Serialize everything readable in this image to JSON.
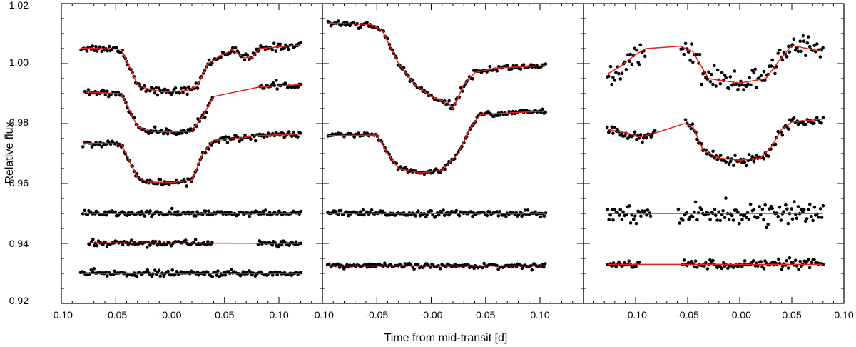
{
  "figure": {
    "xlabel": "Time from mid-transit [d]",
    "ylabel": "Relative flux",
    "y_tick_labels": [
      "0.92",
      "0.94",
      "0.96",
      "0.98",
      "1.00",
      "1.02"
    ],
    "colors": {
      "points": "#000000",
      "model": "#e8201c",
      "axes": "#000000"
    }
  },
  "chart_data": [
    {
      "type": "scatter",
      "panel": "left",
      "ylim": [
        0.92,
        1.02
      ],
      "xlim": [
        -0.1,
        0.14
      ],
      "x_ticks": [
        -0.1,
        -0.05,
        0.0,
        0.05,
        0.1
      ],
      "x_tick_labels": [
        "-0.10",
        "-0.05",
        "-0.00",
        "0.05",
        "0.10"
      ],
      "series": [
        {
          "x0": -0.082,
          "x1": 0.12,
          "noise": 0.0006,
          "gaps": [],
          "curve": [
            [
              -0.082,
              1.0052
            ],
            [
              -0.045,
              1.0048
            ],
            [
              -0.03,
              0.993
            ],
            [
              -0.02,
              0.9915
            ],
            [
              -0.005,
              0.9905
            ],
            [
              0.015,
              0.991
            ],
            [
              0.025,
              0.9925
            ],
            [
              0.035,
              1.0
            ],
            [
              0.048,
              1.003
            ],
            [
              0.058,
              1.0045
            ],
            [
              0.068,
              1.002
            ],
            [
              0.075,
              1.002
            ],
            [
              0.082,
              1.005
            ],
            [
              0.12,
              1.0062
            ]
          ]
        },
        {
          "x0": -0.078,
          "x1": 0.12,
          "noise": 0.0005,
          "gaps": [
            [
              0.04,
              0.082
            ]
          ],
          "curve": [
            [
              -0.078,
              0.9905
            ],
            [
              -0.045,
              0.99
            ],
            [
              -0.03,
              0.979
            ],
            [
              -0.02,
              0.9775
            ],
            [
              0.0,
              0.9772
            ],
            [
              0.02,
              0.9775
            ],
            [
              0.03,
              0.9825
            ],
            [
              0.04,
              0.989
            ],
            [
              0.082,
              0.9922
            ],
            [
              0.12,
              0.993
            ]
          ]
        },
        {
          "x0": -0.08,
          "x1": 0.12,
          "noise": 0.0005,
          "gaps": [],
          "curve": [
            [
              -0.08,
              0.9735
            ],
            [
              -0.045,
              0.9732
            ],
            [
              -0.03,
              0.962
            ],
            [
              -0.02,
              0.9605
            ],
            [
              0.0,
              0.9603
            ],
            [
              0.02,
              0.961
            ],
            [
              0.03,
              0.97
            ],
            [
              0.04,
              0.9745
            ],
            [
              0.06,
              0.975
            ],
            [
              0.08,
              0.976
            ],
            [
              0.12,
              0.9765
            ]
          ]
        },
        {
          "x0": -0.08,
          "x1": 0.12,
          "noise": 0.0005,
          "gaps": [],
          "curve": [
            [
              -0.08,
              0.95
            ],
            [
              0.12,
              0.95
            ]
          ]
        },
        {
          "x0": -0.075,
          "x1": 0.12,
          "noise": 0.0005,
          "gaps": [
            [
              0.04,
              0.08
            ]
          ],
          "curve": [
            [
              -0.075,
              0.9402
            ],
            [
              0.12,
              0.94
            ]
          ]
        },
        {
          "x0": -0.082,
          "x1": 0.12,
          "noise": 0.0005,
          "gaps": [],
          "curve": [
            [
              -0.082,
              0.93
            ],
            [
              0.12,
              0.93
            ]
          ]
        }
      ]
    },
    {
      "type": "scatter",
      "panel": "middle",
      "ylim": [
        0.92,
        1.02
      ],
      "xlim": [
        -0.1,
        0.14
      ],
      "x_ticks": [
        -0.1,
        -0.05,
        0.0,
        0.05,
        0.1
      ],
      "x_tick_labels": [
        "-0.10",
        "-0.05",
        "-0.00",
        "0.05",
        "0.10"
      ],
      "series": [
        {
          "x0": -0.095,
          "x1": 0.105,
          "noise": 0.0005,
          "gaps": [],
          "curve": [
            [
              -0.095,
              1.0135
            ],
            [
              -0.055,
              1.013
            ],
            [
              -0.045,
              1.011
            ],
            [
              -0.03,
              1.0
            ],
            [
              -0.015,
              0.993
            ],
            [
              0.0,
              0.989
            ],
            [
              0.015,
              0.987
            ],
            [
              0.02,
              0.985
            ],
            [
              0.03,
              0.993
            ],
            [
              0.04,
              0.997
            ],
            [
              0.06,
              0.9985
            ],
            [
              0.105,
              0.9993
            ]
          ]
        },
        {
          "x0": -0.095,
          "x1": 0.105,
          "noise": 0.0004,
          "gaps": [],
          "curve": [
            [
              -0.095,
              0.976
            ],
            [
              -0.05,
              0.9762
            ],
            [
              -0.04,
              0.97
            ],
            [
              -0.03,
              0.965
            ],
            [
              -0.01,
              0.9635
            ],
            [
              0.01,
              0.9645
            ],
            [
              0.025,
              0.97
            ],
            [
              0.035,
              0.978
            ],
            [
              0.045,
              0.983
            ],
            [
              0.105,
              0.9842
            ]
          ]
        },
        {
          "x0": -0.095,
          "x1": 0.105,
          "noise": 0.0005,
          "gaps": [],
          "curve": [
            [
              -0.095,
              0.95
            ],
            [
              0.105,
              0.95
            ]
          ]
        },
        {
          "x0": -0.095,
          "x1": 0.105,
          "noise": 0.0004,
          "gaps": [],
          "curve": [
            [
              -0.095,
              0.9325
            ],
            [
              0.105,
              0.9325
            ]
          ]
        }
      ]
    },
    {
      "type": "scatter",
      "panel": "right",
      "ylim": [
        0.92,
        1.02
      ],
      "xlim": [
        -0.15,
        0.1
      ],
      "x_ticks": [
        -0.1,
        -0.05,
        0.0,
        0.05,
        0.1
      ],
      "x_tick_labels": [
        "-0.10",
        "-0.05",
        "-0.00",
        "0.05",
        "0.10"
      ],
      "series": [
        {
          "x0": -0.127,
          "x1": 0.08,
          "noise": 0.002,
          "gaps": [
            [
              -0.09,
              -0.057
            ]
          ],
          "curve": [
            [
              -0.127,
              0.9965
            ],
            [
              -0.115,
              0.999
            ],
            [
              -0.1,
              1.003
            ],
            [
              -0.09,
              1.005
            ],
            [
              -0.057,
              1.0058
            ],
            [
              -0.045,
              1.004
            ],
            [
              -0.035,
              0.998
            ],
            [
              -0.03,
              0.995
            ],
            [
              0.0,
              0.9935
            ],
            [
              0.025,
              0.995
            ],
            [
              0.04,
              1.002
            ],
            [
              0.05,
              1.006
            ],
            [
              0.08,
              1.004
            ]
          ]
        },
        {
          "x0": -0.127,
          "x1": 0.08,
          "noise": 0.0008,
          "gaps": [
            [
              -0.08,
              -0.053
            ]
          ],
          "curve": [
            [
              -0.127,
              0.978
            ],
            [
              -0.11,
              0.977
            ],
            [
              -0.095,
              0.9755
            ],
            [
              -0.08,
              0.977
            ],
            [
              -0.053,
              0.98
            ],
            [
              -0.045,
              0.979
            ],
            [
              -0.035,
              0.971
            ],
            [
              -0.02,
              0.9685
            ],
            [
              0.0,
              0.9678
            ],
            [
              0.02,
              0.9685
            ],
            [
              0.03,
              0.972
            ],
            [
              0.04,
              0.978
            ],
            [
              0.05,
              0.9805
            ],
            [
              0.08,
              0.9815
            ]
          ]
        },
        {
          "x0": -0.127,
          "x1": 0.08,
          "noise": 0.0015,
          "gaps": [
            [
              -0.085,
              -0.06
            ]
          ],
          "curve": [
            [
              -0.127,
              0.95
            ],
            [
              0.08,
              0.95
            ]
          ]
        },
        {
          "x0": -0.127,
          "x1": 0.08,
          "noise": 0.0008,
          "gaps": [
            [
              -0.095,
              -0.055
            ]
          ],
          "curve": [
            [
              -0.127,
              0.933
            ],
            [
              0.08,
              0.933
            ]
          ]
        }
      ]
    }
  ]
}
